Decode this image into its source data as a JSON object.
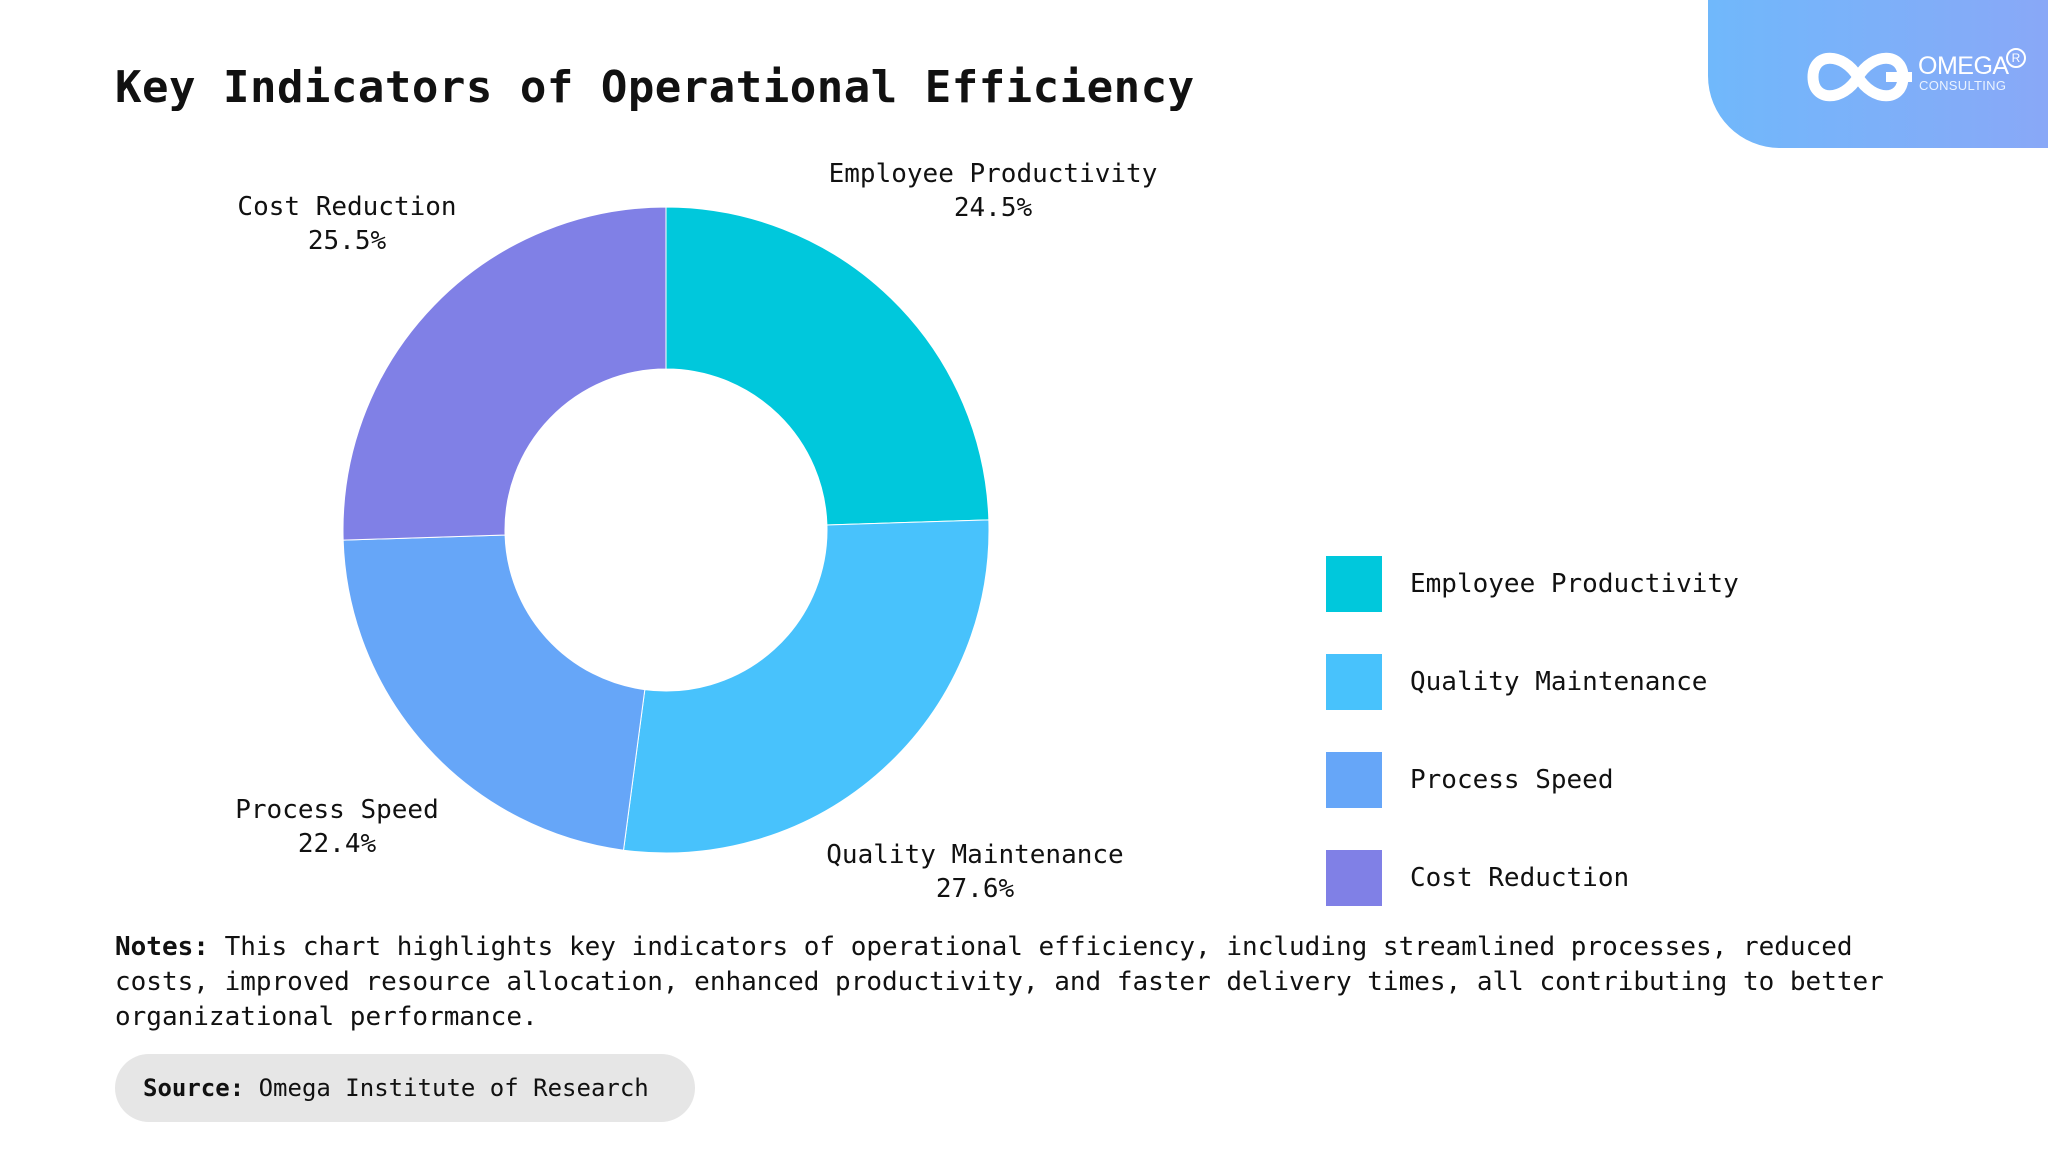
{
  "title": "Key Indicators of Operational Efficiency",
  "brand": {
    "name": "OMEGA",
    "registered": "R",
    "subtitle": "CONSULTING"
  },
  "chart_data": {
    "type": "pie",
    "donut": true,
    "title": "Key Indicators of Operational Efficiency",
    "categories": [
      "Employee Productivity",
      "Quality Maintenance",
      "Process Speed",
      "Cost Reduction"
    ],
    "values": [
      24.5,
      27.6,
      22.4,
      25.5
    ],
    "value_labels": [
      "24.5%",
      "27.6%",
      "22.4%",
      "25.5%"
    ],
    "colors": [
      "#00c8dc",
      "#48c2fc",
      "#66a6f8",
      "#8080e6"
    ],
    "legend_position": "right"
  },
  "legend": [
    {
      "label": "Employee Productivity",
      "color": "#00c8dc"
    },
    {
      "label": "Quality Maintenance",
      "color": "#48c2fc"
    },
    {
      "label": "Process Speed",
      "color": "#66a6f8"
    },
    {
      "label": "Cost Reduction",
      "color": "#8080e6"
    }
  ],
  "notes": {
    "label": "Notes:",
    "text": "This chart highlights key indicators of operational efficiency, including streamlined processes, reduced costs, improved resource allocation, enhanced productivity, and faster delivery times, all contributing to better organizational performance."
  },
  "source": {
    "label": "Source:",
    "text": "Omega Institute of Research"
  }
}
